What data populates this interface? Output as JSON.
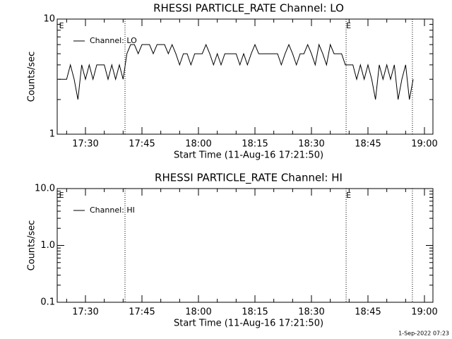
{
  "chart_data": [
    {
      "type": "line",
      "title": "RHESSI PARTICLE_RATE Channel: LO",
      "xlabel": "Start Time (11-Aug-16 17:21:50)",
      "ylabel": "Counts/sec",
      "log_y": true,
      "ylim": [
        1,
        10
      ],
      "yticks": [
        1,
        10
      ],
      "yminorticks": [
        2,
        3,
        4,
        5,
        6,
        7,
        8,
        9
      ],
      "xlim": [
        1042.5,
        1142.25
      ],
      "xticks": [
        {
          "value": 1050,
          "label": "17:30"
        },
        {
          "value": 1065,
          "label": "17:45"
        },
        {
          "value": 1080,
          "label": "18:00"
        },
        {
          "value": 1095,
          "label": "18:15"
        },
        {
          "value": 1110,
          "label": "18:30"
        },
        {
          "value": 1125,
          "label": "18:45"
        },
        {
          "value": 1140,
          "label": "19:00"
        }
      ],
      "xminorticks": [
        1045,
        1055,
        1060,
        1070,
        1075,
        1085,
        1090,
        1100,
        1105,
        1115,
        1120,
        1130,
        1135
      ],
      "vlines": [
        1060.5,
        1119.2,
        1136.8
      ],
      "annotations": [
        {
          "x": 1043,
          "text": "E"
        },
        {
          "x": 1119.2,
          "text": "E"
        }
      ],
      "legend": "upper left",
      "x": [
        1043,
        1044,
        1045,
        1046,
        1047,
        1048,
        1049,
        1050,
        1051,
        1052,
        1053,
        1054,
        1055,
        1056,
        1057,
        1058,
        1059,
        1060,
        1061,
        1062,
        1063,
        1064,
        1065,
        1066,
        1067,
        1068,
        1069,
        1070,
        1071,
        1072,
        1073,
        1074,
        1075,
        1076,
        1077,
        1078,
        1079,
        1080,
        1081,
        1082,
        1083,
        1084,
        1085,
        1086,
        1087,
        1088,
        1089,
        1090,
        1091,
        1092,
        1093,
        1094,
        1095,
        1096,
        1097,
        1098,
        1099,
        1100,
        1101,
        1102,
        1103,
        1104,
        1105,
        1106,
        1107,
        1108,
        1109,
        1110,
        1111,
        1112,
        1113,
        1114,
        1115,
        1116,
        1117,
        1118,
        1119,
        1120,
        1121,
        1122,
        1123,
        1124,
        1125,
        1126,
        1127,
        1128,
        1129,
        1130,
        1131,
        1132,
        1133,
        1134,
        1135,
        1136,
        1137
      ],
      "series": [
        {
          "name": "Channel: LO",
          "color": "#000000",
          "values": [
            3,
            3,
            3,
            4,
            3,
            2,
            4,
            3,
            4,
            3,
            4,
            4,
            4,
            3,
            4,
            3,
            4,
            3,
            5,
            6,
            6,
            5,
            6,
            6,
            6,
            5,
            6,
            6,
            6,
            5,
            6,
            5,
            4,
            5,
            5,
            4,
            5,
            5,
            5,
            6,
            5,
            4,
            5,
            4,
            5,
            5,
            5,
            5,
            4,
            5,
            4,
            5,
            6,
            5,
            5,
            5,
            5,
            5,
            5,
            4,
            5,
            6,
            5,
            4,
            5,
            5,
            6,
            5,
            4,
            6,
            5,
            4,
            6,
            5,
            5,
            5,
            4,
            4,
            4,
            3,
            4,
            3,
            4,
            3,
            2,
            4,
            3,
            4,
            3,
            4,
            2,
            3,
            4,
            2,
            3
          ]
        }
      ]
    },
    {
      "type": "line",
      "title": "RHESSI PARTICLE_RATE Channel: HI",
      "xlabel": "Start Time (11-Aug-16 17:21:50)",
      "ylabel": "Counts/sec",
      "log_y": true,
      "ylim": [
        0.1,
        10
      ],
      "yticks": [
        0.1,
        {
          "value": 1,
          "label": "1.0"
        },
        {
          "value": 10,
          "label": "10.0"
        }
      ],
      "yminorticks": [
        0.2,
        0.3,
        0.4,
        0.5,
        0.6,
        0.7,
        0.8,
        0.9,
        2,
        3,
        4,
        5,
        6,
        7,
        8,
        9
      ],
      "xlim": [
        1042.5,
        1142.25
      ],
      "xticks": [
        {
          "value": 1050,
          "label": "17:30"
        },
        {
          "value": 1065,
          "label": "17:45"
        },
        {
          "value": 1080,
          "label": "18:00"
        },
        {
          "value": 1095,
          "label": "18:15"
        },
        {
          "value": 1110,
          "label": "18:30"
        },
        {
          "value": 1125,
          "label": "18:45"
        },
        {
          "value": 1140,
          "label": "19:00"
        }
      ],
      "xminorticks": [
        1045,
        1055,
        1060,
        1070,
        1075,
        1085,
        1090,
        1100,
        1105,
        1115,
        1120,
        1130,
        1135
      ],
      "vlines": [
        1060.5,
        1119.2,
        1136.8
      ],
      "annotations": [
        {
          "x": 1043,
          "text": "E"
        },
        {
          "x": 1119.2,
          "text": "E"
        }
      ],
      "legend": "upper left",
      "x": [],
      "series": [
        {
          "name": "Channel: HI",
          "color": "#000000",
          "values": []
        }
      ]
    }
  ],
  "footer": "1-Sep-2022 07:23"
}
